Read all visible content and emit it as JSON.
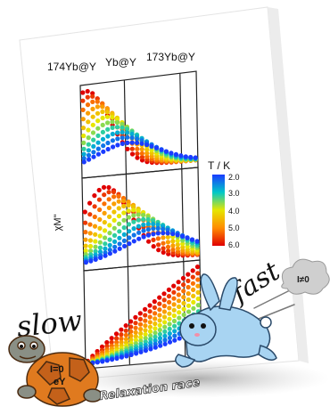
{
  "panel_labels": {
    "left": "174Yb@Y",
    "middle": "Yb@Y",
    "right": "173Yb@Y"
  },
  "chart_data": {
    "type": "scatter",
    "title": "",
    "ylabel": "χM\"",
    "colorbar": {
      "title": "T / K",
      "ticks": [
        "2.0",
        "3.0",
        "4.0",
        "5.0",
        "6.0"
      ],
      "range": [
        2.0,
        6.0
      ],
      "colors": [
        "#e00000",
        "#ff8c00",
        "#e6e600",
        "#00c8c8",
        "#1a3cff"
      ]
    },
    "panels": [
      "174Yb@Y",
      "Yb@Y",
      "173Yb@Y"
    ],
    "series_temperatures": [
      2.0,
      2.4,
      2.8,
      3.2,
      3.6,
      4.0,
      4.4,
      4.8,
      5.2,
      5.6,
      6.0
    ],
    "grid_columns": 3
  },
  "cartoon": {
    "slow_label": "slow",
    "fast_label": "fast",
    "turtle_shell_text": "I=0",
    "turtle_shell_text2": "eY",
    "cloud_text": "I≠0",
    "banner_text": "Relaxation race",
    "colors": {
      "turtle_shell": "#e07a1f",
      "rabbit": "#9ecff0",
      "cloud": "#c8c8c8"
    }
  }
}
